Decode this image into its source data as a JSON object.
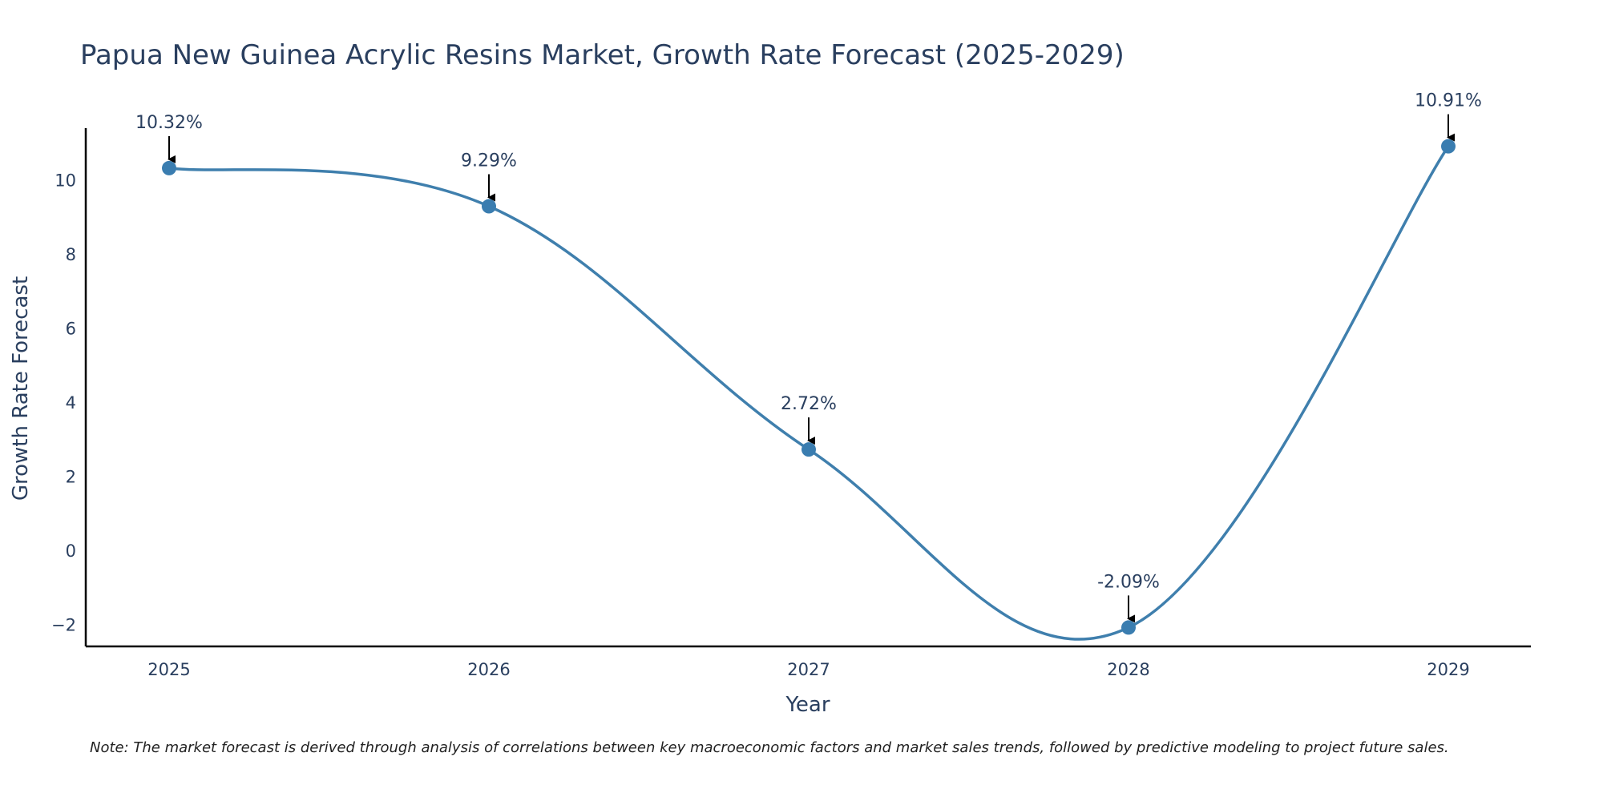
{
  "chart_data": {
    "type": "line",
    "title": "Papua New Guinea Acrylic Resins Market, Growth Rate Forecast (2025-2029)",
    "xlabel": "Year",
    "ylabel": "Growth Rate Forecast",
    "categories": [
      "2025",
      "2026",
      "2027",
      "2028",
      "2029"
    ],
    "values": [
      10.32,
      9.29,
      2.72,
      -2.09,
      10.91
    ],
    "data_labels": [
      "10.32%",
      "9.29%",
      "2.72%",
      "-2.09%",
      "10.91%"
    ],
    "y_ticks": [
      -2,
      0,
      2,
      4,
      6,
      8,
      10
    ],
    "y_tick_labels": [
      "−2",
      "0",
      "2",
      "4",
      "6",
      "8",
      "10"
    ],
    "ylim": [
      -2.6,
      11.4
    ],
    "grid": false,
    "line_shape": "spline",
    "colors": {
      "line": "#3f7fad",
      "marker": "#3a7db0",
      "arrow": "#000000",
      "axis": "#000000",
      "text": "#2a3f5f"
    }
  },
  "note": "Note: The market forecast is derived through analysis of correlations between key macroeconomic factors and market sales trends, followed by predictive modeling to project future sales."
}
